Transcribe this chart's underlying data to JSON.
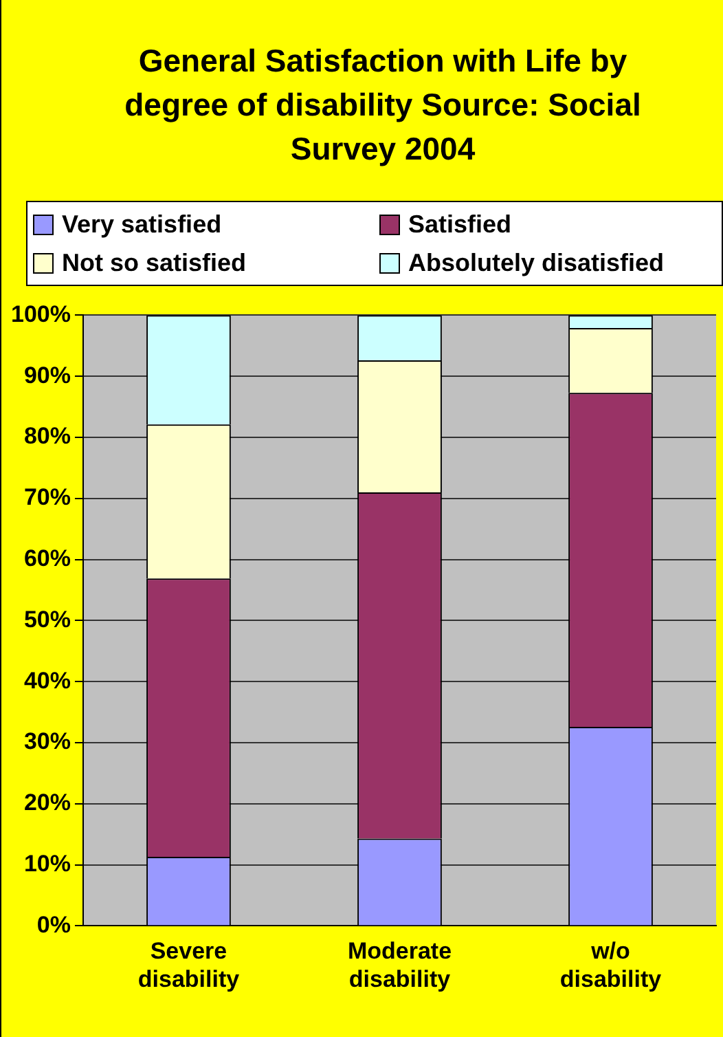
{
  "chart_data": {
    "type": "bar",
    "stacked": true,
    "title": "General Satisfaction with Life by degree of disability Source: Social Survey 2004",
    "categories": [
      "Severe disability",
      "Moderate disability",
      "w/o disability"
    ],
    "series": [
      {
        "name": "Very satisfied",
        "color": "#9999ff",
        "values": [
          11.3,
          14.3,
          32.6
        ]
      },
      {
        "name": "Satisfied",
        "color": "#993366",
        "values": [
          45.6,
          56.7,
          54.7
        ]
      },
      {
        "name": "Not so satisfied",
        "color": "#ffffcc",
        "values": [
          25.2,
          21.6,
          10.6
        ]
      },
      {
        "name": "Absolutely disatisfied",
        "color": "#ccffff",
        "values": [
          17.9,
          7.4,
          2.1
        ]
      }
    ],
    "ylim": [
      0,
      100
    ],
    "yticks": [
      {
        "value": 0,
        "label": "0%"
      },
      {
        "value": 10,
        "label": "10%"
      },
      {
        "value": 20,
        "label": "20%"
      },
      {
        "value": 30,
        "label": "30%"
      },
      {
        "value": 40,
        "label": "40%"
      },
      {
        "value": 50,
        "label": "50%"
      },
      {
        "value": 60,
        "label": "60%"
      },
      {
        "value": 70,
        "label": "70%"
      },
      {
        "value": 80,
        "label": "80%"
      },
      {
        "value": 90,
        "label": "90%"
      },
      {
        "value": 100,
        "label": "100%"
      }
    ],
    "grid": "y",
    "legend": "top"
  }
}
